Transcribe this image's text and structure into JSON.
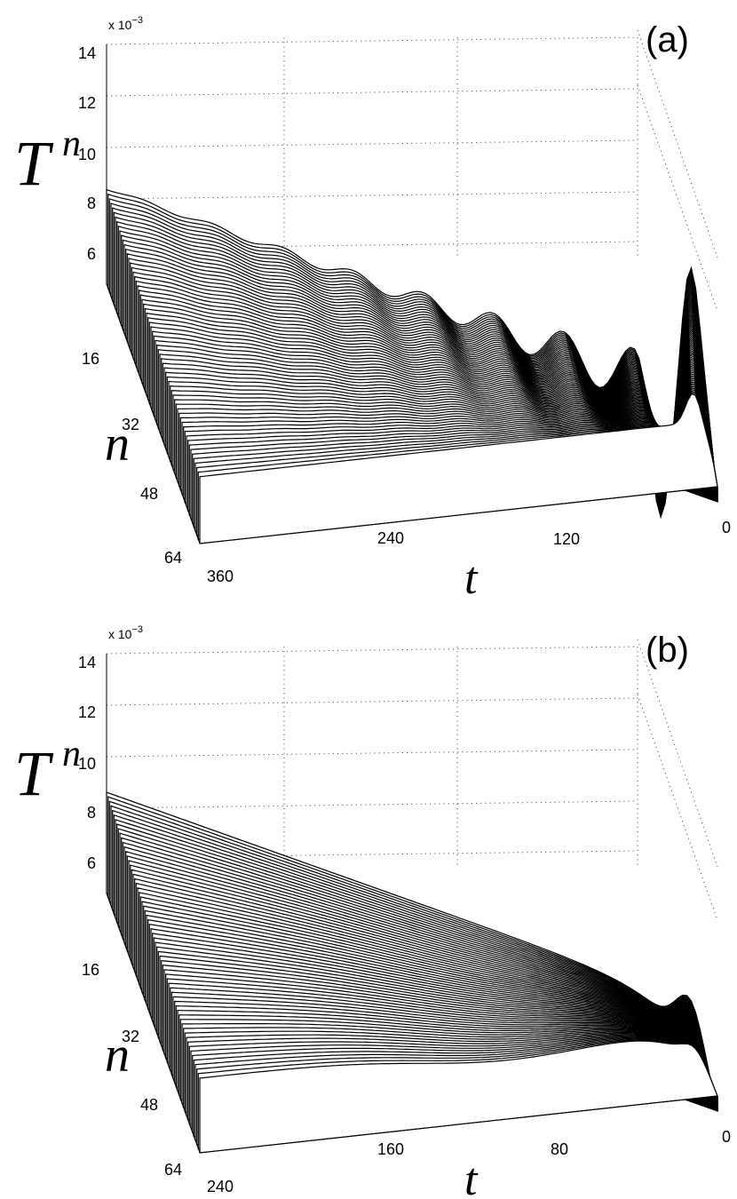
{
  "chart_data": [
    {
      "type": "area",
      "panel_label": "(a)",
      "ylabel": "T",
      "ylabel_sub": "n",
      "xlabel": "t",
      "depth_label": "n",
      "z_multiplier": "x 10",
      "z_multiplier_exp": "−3",
      "zlim": [
        0.005,
        0.014
      ],
      "xlim": [
        0,
        360
      ],
      "nlim": [
        1,
        64
      ],
      "z_ticks": [
        "6",
        "8",
        "10",
        "12",
        "14"
      ],
      "x_ticks": [
        "0",
        "120",
        "240",
        "360"
      ],
      "n_ticks": [
        "16",
        "32",
        "48",
        "64"
      ],
      "series_count": 64,
      "baseline_T": 0.0089,
      "surface_features": {
        "initial_peak_t": 18,
        "initial_peak_T": 0.0104,
        "trough_t": 36,
        "trough_T": 0.0082,
        "oscillation_period_t": 40,
        "oscillation_decay_t": 90
      }
    },
    {
      "type": "area",
      "panel_label": "(b)",
      "ylabel": "T",
      "ylabel_sub": "n",
      "xlabel": "t",
      "depth_label": "n",
      "z_multiplier": "x 10",
      "z_multiplier_exp": "−3",
      "zlim": [
        0.005,
        0.014
      ],
      "xlim": [
        0,
        240
      ],
      "nlim": [
        1,
        64
      ],
      "z_ticks": [
        "6",
        "8",
        "10",
        "12",
        "14"
      ],
      "x_ticks": [
        "0",
        "80",
        "160",
        "240"
      ],
      "n_ticks": [
        "16",
        "32",
        "48",
        "64"
      ],
      "series_count": 64,
      "baseline_T": 0.009,
      "surface_features": {
        "initial_peak_t": 10,
        "initial_peak_T": 0.0102,
        "relaxation_t": 60
      }
    }
  ]
}
